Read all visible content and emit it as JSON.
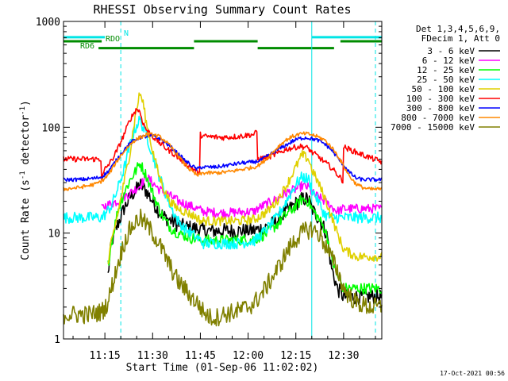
{
  "chart_data": {
    "type": "line",
    "title": "RHESSI Observing Summary Count Rates",
    "xlabel": "Start Time (01-Sep-06 11:02:02)",
    "ylabel_main": "Count Rate (s",
    "ylabel_sup1": "-1",
    "ylabel_mid": " detector",
    "ylabel_sup2": "-1",
    "ylabel_end": ")",
    "y_scale": "log",
    "ylim": [
      1,
      1000
    ],
    "xlim_minutes": [
      0,
      100
    ],
    "x_ticks": [
      {
        "label": "11:15",
        "minute": 13
      },
      {
        "label": "11:30",
        "minute": 28
      },
      {
        "label": "11:45",
        "minute": 43
      },
      {
        "label": "12:00",
        "minute": 58
      },
      {
        "label": "12:15",
        "minute": 73
      },
      {
        "label": "12:30",
        "minute": 88
      }
    ],
    "y_ticks": [
      {
        "label": "1",
        "value": 1
      },
      {
        "label": "10",
        "value": 10
      },
      {
        "label": "100",
        "value": 100
      },
      {
        "label": "1000",
        "value": 1000
      }
    ],
    "legend_header": [
      "Det 1,3,4,5,6,9,",
      "FDecim 1, Att 0"
    ],
    "legend_position": "right",
    "timestamp": "17-Oct-2021 00:56",
    "flag_labels": {
      "n": "N",
      "rdo": "RDO",
      "rd6": "RD6"
    },
    "flags": {
      "night": {
        "color": "#00e5e5",
        "value": 710,
        "segments": [
          [
            0,
            13
          ],
          [
            78,
            100
          ]
        ]
      },
      "rdo": {
        "color": "#008c00",
        "value": 650,
        "segments": [
          [
            0,
            12
          ],
          [
            41,
            61
          ],
          [
            87,
            100
          ]
        ]
      },
      "rd6": {
        "color": "#008c00",
        "value": 560,
        "segments": [
          [
            11,
            41
          ],
          [
            61,
            85
          ]
        ]
      }
    },
    "markers": [
      {
        "minute": 18,
        "color": "#00e5e5",
        "style": "dashed"
      },
      {
        "minute": 78,
        "color": "#00e5e5",
        "style": "solid"
      },
      {
        "minute": 98,
        "color": "#00e5e5",
        "style": "dashed"
      }
    ],
    "series": [
      {
        "name": "3 - 6 keV",
        "color": "#000000",
        "noise": 0.16,
        "x": [
          14,
          15,
          17,
          19,
          21,
          23,
          24,
          26,
          28,
          30,
          32,
          34,
          36,
          38,
          40,
          42,
          43,
          44,
          50,
          55,
          60,
          61,
          64,
          67,
          70,
          73,
          75,
          77,
          78,
          80,
          82,
          83,
          84,
          86,
          88,
          92,
          96,
          100
        ],
        "y": [
          4,
          8,
          12,
          17,
          22,
          26,
          29,
          25,
          20,
          16,
          14,
          13,
          12,
          11.5,
          11.2,
          11,
          10.8,
          10.5,
          10.5,
          10.5,
          10.6,
          10.8,
          11.5,
          13,
          16,
          19,
          21,
          21,
          17,
          14,
          11,
          9,
          5,
          3,
          2.5,
          2.5,
          2.5,
          2.5
        ]
      },
      {
        "name": "6 - 12 keV",
        "color": "#ff00ff",
        "noise": 0.1,
        "x": [
          12,
          13,
          15,
          17,
          19,
          21,
          24,
          26,
          28,
          30,
          32,
          34,
          36,
          38,
          40,
          42,
          43,
          44,
          50,
          55,
          60,
          61,
          64,
          67,
          70,
          73,
          75,
          77,
          78,
          80,
          82,
          84,
          85,
          86,
          88,
          92,
          100
        ],
        "y": [
          17,
          18,
          19,
          20,
          22,
          24,
          28,
          34,
          30,
          26,
          24,
          22,
          20,
          19,
          18,
          17,
          16.5,
          16,
          15.5,
          15.8,
          16,
          17,
          19,
          21,
          24,
          26,
          28,
          27,
          24,
          22,
          20,
          18,
          17,
          16,
          17,
          17,
          17
        ]
      },
      {
        "name": "12 - 25 keV",
        "color": "#00ff00",
        "noise": 0.12,
        "x": [
          14,
          15,
          17,
          19,
          21,
          23,
          24,
          26,
          28,
          30,
          32,
          34,
          36,
          38,
          40,
          42,
          43,
          44,
          50,
          55,
          60,
          61,
          64,
          67,
          70,
          73,
          75,
          77,
          78,
          80,
          82,
          83,
          84,
          86,
          88,
          92,
          96,
          100
        ],
        "y": [
          5,
          8,
          16,
          24,
          32,
          40,
          46,
          35,
          24,
          17,
          13,
          11,
          10,
          9.5,
          9,
          8.8,
          8.6,
          8.5,
          8.5,
          8.6,
          8.8,
          9,
          10,
          12,
          15,
          18,
          21,
          20,
          17,
          14,
          11,
          9,
          6,
          4,
          3,
          3,
          3,
          3
        ]
      },
      {
        "name": "25 - 50 keV",
        "color": "#00ffff",
        "noise": 0.12,
        "x": [
          0,
          5,
          10,
          12,
          13,
          15,
          17,
          19,
          21,
          23,
          24,
          26,
          28,
          30,
          32,
          34,
          36,
          38,
          40,
          42,
          43,
          44,
          50,
          55,
          60,
          61,
          64,
          67,
          70,
          73,
          75,
          77,
          78,
          80,
          82,
          84,
          86,
          88,
          92,
          96,
          100
        ],
        "y": [
          14,
          14,
          14,
          14,
          15,
          18,
          26,
          40,
          70,
          105,
          118,
          85,
          55,
          35,
          24,
          17,
          13,
          11,
          10,
          9,
          8.5,
          8,
          8,
          8,
          8.5,
          9,
          11,
          14,
          20,
          29,
          34,
          32,
          26,
          20,
          15,
          14,
          14,
          14,
          14,
          14,
          14
        ]
      },
      {
        "name": "50 - 100 keV",
        "color": "#e0d000",
        "noise": 0.1,
        "x": [
          14,
          15,
          17,
          19,
          21,
          22,
          23,
          24,
          25,
          26,
          28,
          30,
          32,
          34,
          36,
          38,
          40,
          42,
          43,
          44,
          50,
          55,
          60,
          61,
          64,
          67,
          70,
          73,
          75,
          77,
          78,
          80,
          82,
          84,
          86,
          88,
          92,
          100
        ],
        "y": [
          5,
          8,
          15,
          30,
          60,
          100,
          150,
          210,
          170,
          110,
          60,
          35,
          24,
          19,
          17,
          16,
          15,
          14,
          13,
          13,
          13,
          13,
          13.5,
          14,
          16,
          20,
          28,
          42,
          55,
          50,
          40,
          30,
          22,
          15,
          10,
          7,
          6,
          6
        ]
      },
      {
        "name": "100 - 300 keV",
        "color": "#ff0000",
        "noise": 0.06,
        "x": [
          0,
          10,
          11.9,
          12,
          13,
          15,
          17,
          19,
          21,
          23,
          24,
          25,
          26,
          28,
          30,
          32,
          34,
          36,
          38,
          40,
          42,
          42.9,
          43,
          44,
          50,
          55,
          60,
          60.9,
          61,
          64,
          67,
          70,
          73,
          75,
          77,
          78,
          80,
          82,
          84,
          86,
          87.9,
          88,
          92,
          96,
          100
        ],
        "y": [
          50,
          50,
          50,
          32,
          40,
          48,
          62,
          85,
          120,
          150,
          140,
          110,
          95,
          82,
          72,
          64,
          58,
          52,
          46,
          42,
          38,
          35,
          85,
          82,
          80,
          82,
          86,
          92,
          50,
          52,
          56,
          62,
          65,
          66,
          63,
          58,
          53,
          47,
          42,
          36,
          31,
          65,
          58,
          52,
          47
        ]
      },
      {
        "name": "300 - 800 keV",
        "color": "#0000ff",
        "noise": 0.04,
        "x": [
          0,
          5,
          10,
          12,
          14,
          16,
          18,
          20,
          22,
          24,
          26,
          28,
          30,
          32,
          34,
          36,
          38,
          40,
          42,
          43,
          44,
          48,
          52,
          56,
          60,
          62,
          64,
          66,
          68,
          70,
          72,
          74,
          76,
          78,
          80,
          82,
          84,
          86,
          88,
          90,
          92,
          94,
          96,
          100
        ],
        "y": [
          32,
          32,
          33,
          34,
          38,
          46,
          56,
          66,
          75,
          80,
          82,
          82,
          79,
          72,
          64,
          56,
          49,
          44,
          40,
          42,
          42,
          42,
          44,
          46,
          47,
          49,
          53,
          58,
          63,
          68,
          74,
          78,
          80,
          78,
          75,
          70,
          62,
          52,
          44,
          37,
          33,
          32,
          32,
          32
        ]
      },
      {
        "name": "800 - 7000 keV",
        "color": "#ff8800",
        "noise": 0.04,
        "x": [
          0,
          5,
          10,
          12,
          14,
          16,
          18,
          20,
          22,
          24,
          26,
          28,
          30,
          32,
          34,
          36,
          38,
          40,
          42,
          43,
          44,
          48,
          52,
          56,
          60,
          62,
          64,
          66,
          68,
          70,
          72,
          74,
          76,
          78,
          80,
          82,
          84,
          86,
          88,
          90,
          92,
          94,
          96,
          100
        ],
        "y": [
          26,
          27,
          29,
          31,
          35,
          44,
          54,
          64,
          74,
          80,
          85,
          85,
          82,
          74,
          64,
          54,
          45,
          39,
          35,
          36,
          37,
          37,
          38,
          40,
          42,
          45,
          51,
          59,
          68,
          76,
          82,
          86,
          87,
          85,
          81,
          76,
          66,
          55,
          43,
          34,
          29,
          27,
          26,
          26
        ]
      },
      {
        "name": "7000 - 15000 keV",
        "color": "#808000",
        "noise": 0.2,
        "x": [
          0,
          4,
          8,
          12,
          14,
          15,
          17,
          19,
          21,
          23,
          24,
          26,
          28,
          30,
          32,
          34,
          36,
          38,
          40,
          42,
          44,
          46,
          48,
          50,
          54,
          58,
          60,
          62,
          64,
          66,
          68,
          70,
          72,
          74,
          76,
          78,
          80,
          82,
          84,
          86,
          88,
          90,
          92,
          96,
          100
        ],
        "y": [
          1.7,
          1.7,
          1.7,
          1.8,
          2.2,
          3,
          5,
          8,
          11,
          13,
          14,
          12,
          10,
          8,
          6,
          4.5,
          3.5,
          3,
          2.5,
          2.2,
          1.8,
          1.6,
          1.6,
          1.7,
          1.8,
          2,
          2.2,
          2.6,
          3.2,
          4,
          5,
          6.5,
          8,
          9.5,
          10.5,
          11,
          10,
          8,
          6,
          4.5,
          3,
          2.5,
          2.2,
          2,
          2
        ]
      }
    ]
  }
}
